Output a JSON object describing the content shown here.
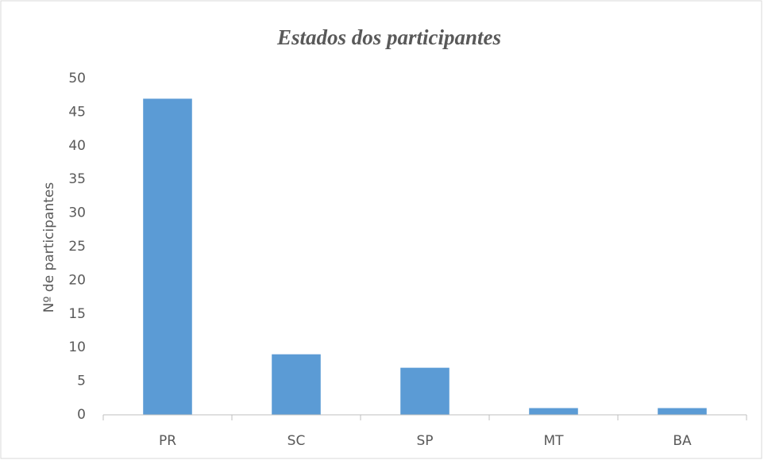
{
  "chart_data": {
    "type": "bar",
    "title": "Estados dos participantes",
    "y_label": "Nº de participantes",
    "categories": [
      "PR",
      "SC",
      "SP",
      "MT",
      "BA"
    ],
    "values": [
      47,
      9,
      7,
      1,
      1
    ],
    "color": "#5b9bd5",
    "ylim": [
      0,
      50
    ],
    "yticks": [
      0,
      5,
      10,
      15,
      20,
      25,
      30,
      35,
      40,
      45,
      50
    ],
    "grid": false
  }
}
